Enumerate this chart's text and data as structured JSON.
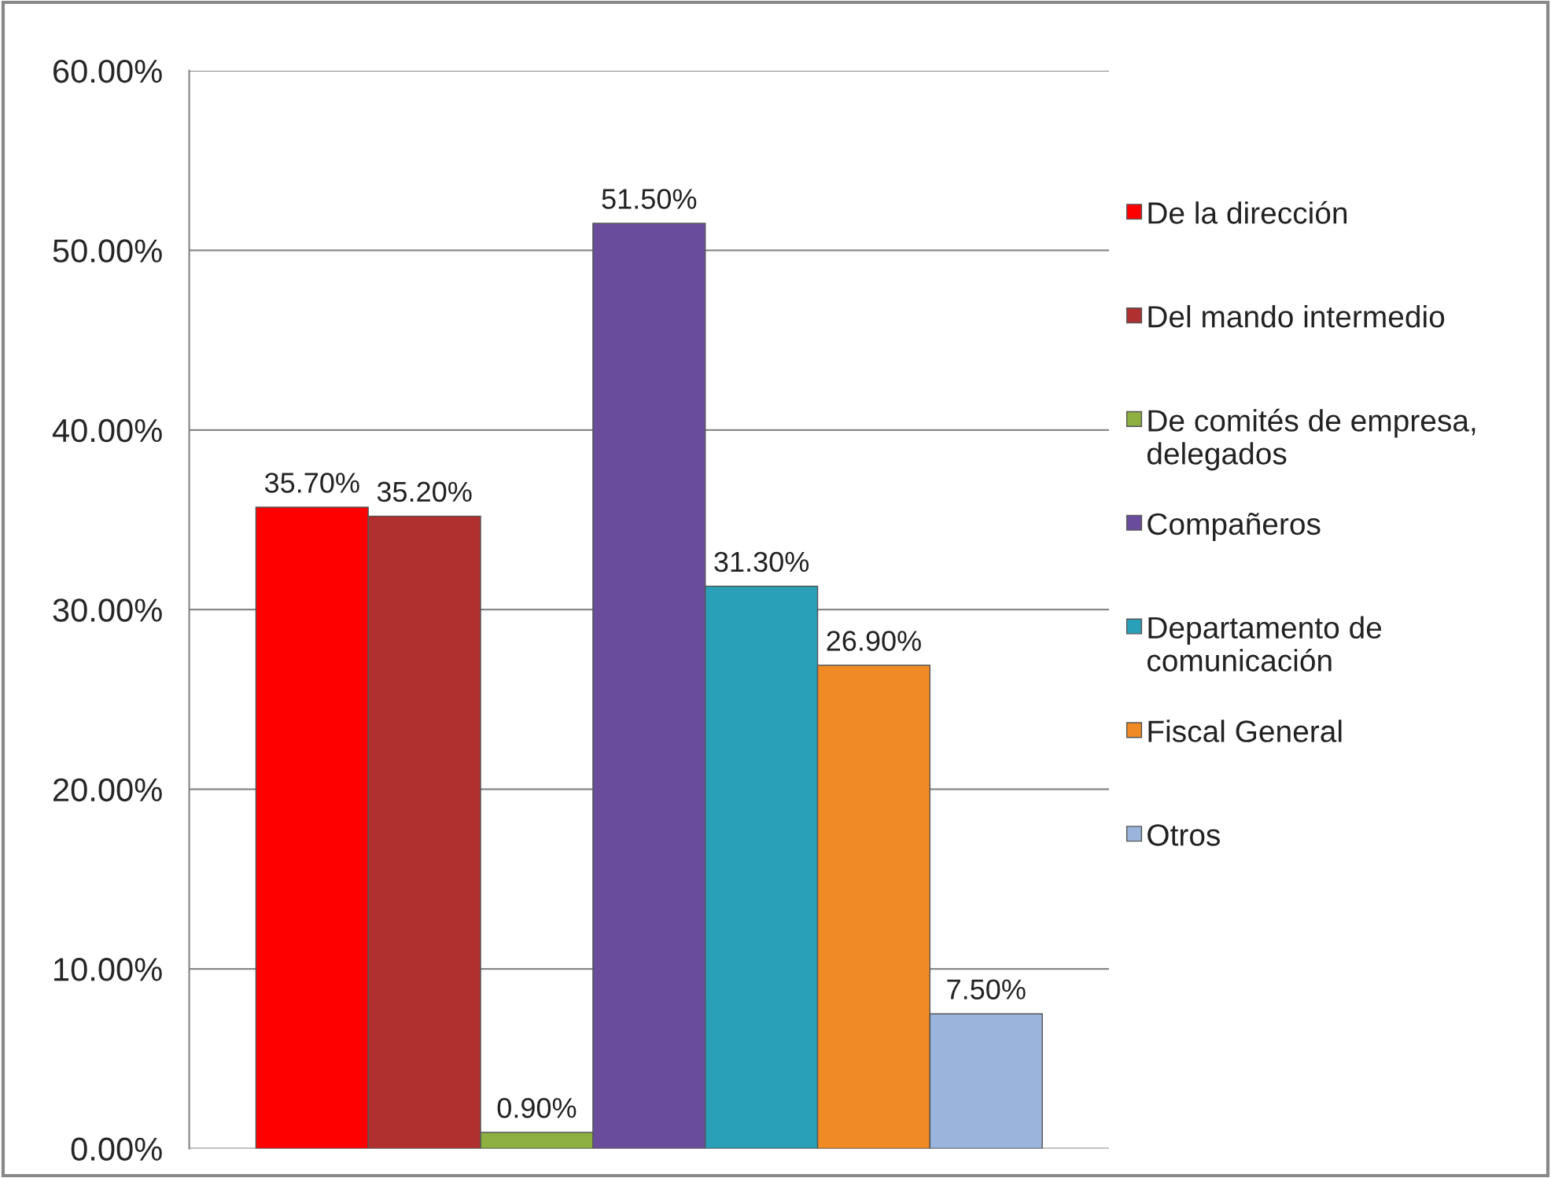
{
  "chart_data": {
    "type": "bar",
    "categories": [
      null
    ],
    "series": [
      {
        "name": "De la dirección",
        "color": "#ff0000",
        "values": [
          35.7
        ],
        "value_labels": [
          "35.70%"
        ]
      },
      {
        "name": "Del mando intermedio",
        "color": "#b03030",
        "values": [
          35.2
        ],
        "value_labels": [
          "35.20%"
        ]
      },
      {
        "name": "De comités de empresa, delegados",
        "color": "#8db040",
        "values": [
          0.9
        ],
        "value_labels": [
          "0.90%"
        ]
      },
      {
        "name": "Compañeros",
        "color": "#6a4c9c",
        "values": [
          51.5
        ],
        "value_labels": [
          "51.50%"
        ]
      },
      {
        "name": "Departamento de comunicación",
        "color": "#2aa0b8",
        "values": [
          31.3
        ],
        "value_labels": [
          "31.30%"
        ]
      },
      {
        "name": "Fiscal General",
        "color": "#f08a24",
        "values": [
          26.9
        ],
        "value_labels": [
          "26.90%"
        ]
      },
      {
        "name": "Otros",
        "color": "#9ab4dc",
        "values": [
          7.5
        ],
        "value_labels": [
          "7.50%"
        ]
      }
    ],
    "ylim": [
      0,
      60
    ],
    "yticks": [
      {
        "value": 0,
        "label": "0.00%"
      },
      {
        "value": 10,
        "label": "10.00%"
      },
      {
        "value": 20,
        "label": "20.00%"
      },
      {
        "value": 30,
        "label": "30.00%"
      },
      {
        "value": 40,
        "label": "40.00%"
      },
      {
        "value": 50,
        "label": "50.00%"
      },
      {
        "value": 60,
        "label": "60.00%"
      }
    ],
    "grid": "y",
    "legend": "right"
  }
}
